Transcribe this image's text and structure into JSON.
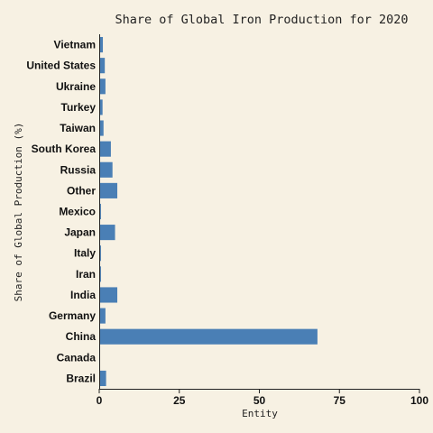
{
  "chart_data": {
    "type": "bar",
    "orientation": "horizontal",
    "title": "Share of Global Iron Production for 2020",
    "xlabel": "Entity",
    "ylabel": "Share of Global Production (%)",
    "categories": [
      "Vietnam",
      "United States",
      "Ukraine",
      "Turkey",
      "Taiwan",
      "South Korea",
      "Russia",
      "Other",
      "Mexico",
      "Japan",
      "Italy",
      "Iran",
      "India",
      "Germany",
      "China",
      "Canada",
      "Brazil"
    ],
    "values": [
      1.0,
      1.6,
      1.8,
      0.9,
      1.2,
      3.5,
      4.0,
      5.5,
      0.4,
      4.8,
      0.4,
      0.4,
      5.5,
      1.8,
      68.0,
      0.0,
      2.0
    ],
    "xlim": [
      0,
      100
    ],
    "xticks": [
      0,
      25,
      50,
      75,
      100
    ],
    "bar_color": "#4a7fb5",
    "background_color": "#f7f1e3",
    "grid": false,
    "legend": "none"
  }
}
